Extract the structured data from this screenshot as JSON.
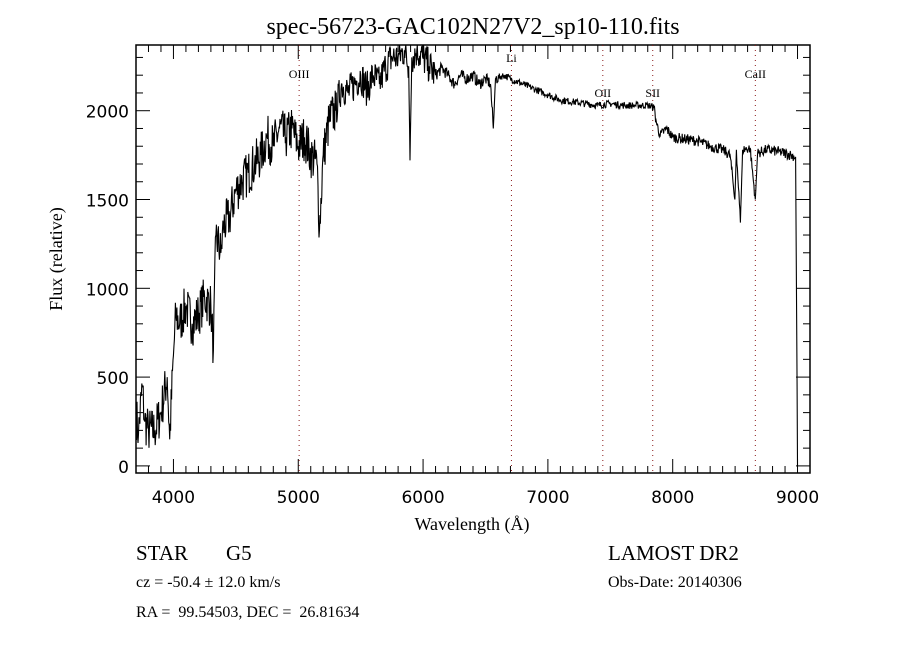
{
  "chart_data": {
    "type": "line",
    "title": "spec-56723-GAC102N27V2_sp10-110.fits",
    "xlabel": "Wavelength (Å)",
    "ylabel": "Flux (relative)",
    "xlim": [
      3700,
      9100
    ],
    "ylim": [
      -40,
      2370
    ],
    "xticks": [
      4000,
      5000,
      6000,
      7000,
      8000,
      9000
    ],
    "xtick_labels": [
      "4000",
      "5000",
      "6000",
      "7000",
      "8000",
      "9000"
    ],
    "yticks": [
      0,
      500,
      1000,
      1500,
      2000
    ],
    "ytick_labels": [
      "0",
      "500",
      "1000",
      "1500",
      "2000"
    ],
    "grid": false,
    "lines": [
      {
        "label": "OIII",
        "x": 5007
      },
      {
        "label": "Li",
        "x": 6708
      },
      {
        "label": "OII",
        "x": 7440
      },
      {
        "label": "SII",
        "x": 7840
      },
      {
        "label": "CaII",
        "x": 8662
      }
    ],
    "series": [
      {
        "name": "spectrum",
        "x": [
          3700,
          3720,
          3750,
          3770,
          3800,
          3850,
          3900,
          3950,
          3970,
          4000,
          4020,
          4050,
          4100,
          4150,
          4200,
          4250,
          4300,
          4320,
          4340,
          4380,
          4400,
          4450,
          4500,
          4550,
          4600,
          4650,
          4700,
          4750,
          4800,
          4850,
          4900,
          4950,
          5000,
          5050,
          5100,
          5150,
          5170,
          5200,
          5250,
          5300,
          5350,
          5400,
          5450,
          5500,
          5550,
          5600,
          5650,
          5700,
          5750,
          5800,
          5850,
          5885,
          5895,
          5910,
          5950,
          6000,
          6050,
          6100,
          6150,
          6200,
          6250,
          6300,
          6350,
          6400,
          6450,
          6500,
          6540,
          6563,
          6580,
          6650,
          6700,
          6800,
          6900,
          7000,
          7100,
          7200,
          7300,
          7400,
          7500,
          7600,
          7700,
          7800,
          7850,
          7870,
          7900,
          7950,
          8000,
          8100,
          8200,
          8300,
          8400,
          8460,
          8498,
          8510,
          8542,
          8560,
          8620,
          8662,
          8680,
          8750,
          8850,
          8950,
          8985,
          9000
        ],
        "y": [
          300,
          180,
          450,
          250,
          200,
          200,
          300,
          500,
          150,
          620,
          850,
          800,
          900,
          800,
          850,
          950,
          900,
          650,
          1300,
          1200,
          1350,
          1400,
          1550,
          1600,
          1650,
          1700,
          1750,
          1850,
          1800,
          1900,
          1850,
          1900,
          1800,
          1850,
          1750,
          1700,
          1330,
          1750,
          1950,
          2000,
          2150,
          2100,
          2150,
          2200,
          2120,
          2200,
          2150,
          2250,
          2300,
          2300,
          2340,
          2250,
          1720,
          2300,
          2340,
          2300,
          2250,
          2200,
          2240,
          2200,
          2150,
          2200,
          2180,
          2200,
          2150,
          2180,
          2150,
          1900,
          2180,
          2200,
          2180,
          2150,
          2120,
          2090,
          2060,
          2050,
          2040,
          2030,
          2040,
          2030,
          2030,
          2030,
          2020,
          1930,
          1860,
          1900,
          1850,
          1840,
          1830,
          1800,
          1780,
          1750,
          1500,
          1780,
          1370,
          1780,
          1790,
          1500,
          1760,
          1780,
          1770,
          1750,
          1740,
          0
        ]
      }
    ]
  },
  "info": {
    "object_class": "STAR",
    "subclass": "G5",
    "redshift": "cz = -50.4 ± 12.0 km/s",
    "coords": "RA =  99.54503, DEC =  26.81634",
    "survey": "LAMOST DR2",
    "obs_date": "Obs-Date: 20140306"
  },
  "colors": {
    "line": "#000000",
    "marker_lines": "#8b1a1a"
  }
}
